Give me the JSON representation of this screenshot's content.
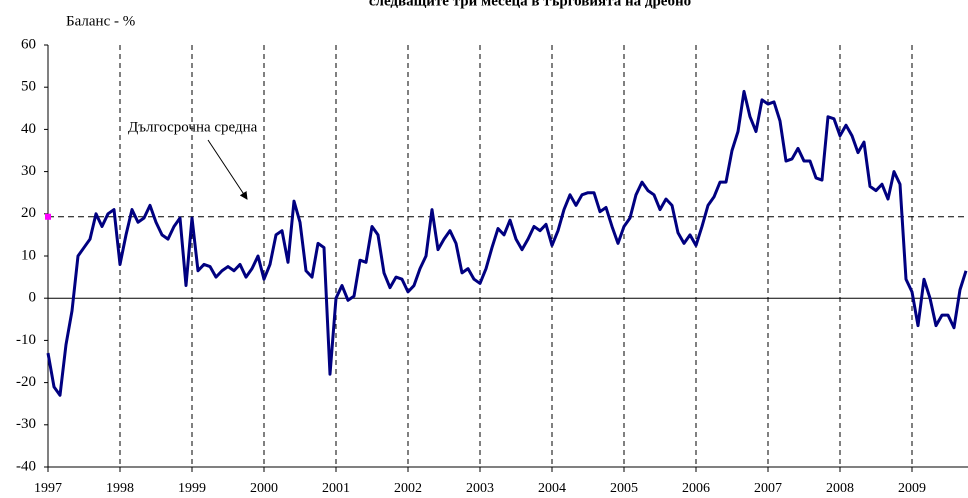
{
  "chart_data": {
    "type": "line",
    "title": "следващите три месеца в търговията на дребно",
    "y_label": "Баланс - %",
    "categories": [
      "1997",
      null,
      null,
      null,
      null,
      null,
      null,
      null,
      null,
      null,
      null,
      null,
      "1998",
      null,
      null,
      null,
      null,
      null,
      null,
      null,
      null,
      null,
      null,
      null,
      "1999",
      null,
      null,
      null,
      null,
      null,
      null,
      null,
      null,
      null,
      null,
      null,
      "2000",
      null,
      null,
      null,
      null,
      null,
      null,
      null,
      null,
      null,
      null,
      null,
      "2001",
      null,
      null,
      null,
      null,
      null,
      null,
      null,
      null,
      null,
      null,
      null,
      "2002",
      null,
      null,
      null,
      null,
      null,
      null,
      null,
      null,
      null,
      null,
      null,
      "2003",
      null,
      null,
      null,
      null,
      null,
      null,
      null,
      null,
      null,
      null,
      null,
      "2004",
      null,
      null,
      null,
      null,
      null,
      null,
      null,
      null,
      null,
      null,
      null,
      "2005",
      null,
      null,
      null,
      null,
      null,
      null,
      null,
      null,
      null,
      null,
      null,
      "2006",
      null,
      null,
      null,
      null,
      null,
      null,
      null,
      null,
      null,
      null,
      null,
      "2007",
      null,
      null,
      null,
      null,
      null,
      null,
      null,
      null,
      null,
      null,
      null,
      "2008",
      null,
      null,
      null,
      null,
      null,
      null,
      null,
      null,
      null,
      null,
      null,
      "2009",
      null,
      null,
      null,
      null,
      null,
      null,
      null,
      null,
      null
    ],
    "series": [
      {
        "color": "#000080",
        "values": [
          -13,
          -21,
          -23,
          -11,
          -3,
          10,
          12,
          14,
          20,
          17,
          20,
          21,
          8,
          15,
          21,
          18,
          19,
          22,
          18,
          15,
          14,
          17,
          19,
          3,
          19,
          6.5,
          8,
          7.5,
          5,
          6.5,
          7.5,
          6.5,
          8,
          5,
          7,
          10,
          4.5,
          8,
          15,
          16,
          8.5,
          23,
          18,
          6.5,
          5,
          13,
          12,
          -18,
          0,
          3,
          -0.5,
          0.5,
          9,
          8.5,
          17,
          15,
          6,
          2.5,
          5,
          4.5,
          1.5,
          3,
          7,
          10,
          21,
          11.5,
          14,
          16,
          13,
          6,
          7,
          4.5,
          3.5,
          7,
          12,
          16.5,
          15,
          18.5,
          14,
          11.5,
          14,
          17,
          16,
          17.5,
          12.5,
          16,
          21,
          24.5,
          22,
          24.5,
          25,
          25,
          20.5,
          21.5,
          17,
          13,
          17,
          19,
          24.5,
          27.5,
          25.5,
          24.5,
          21,
          23.5,
          22,
          15.5,
          13,
          15,
          12.5,
          17,
          22,
          24,
          27.5,
          27.5,
          35,
          39.5,
          49,
          43,
          39.5,
          47,
          46,
          46.5,
          42,
          32.5,
          33,
          35.5,
          32.5,
          32.5,
          28.5,
          28,
          43,
          42.5,
          38.5,
          41,
          38.5,
          34.5,
          37,
          26.5,
          25.5,
          27,
          23.5,
          30,
          27,
          4.5,
          1.5,
          -6.5,
          4.5,
          0,
          -6.5,
          -4,
          -4,
          -7,
          2,
          6.5
        ]
      }
    ],
    "reference": {
      "label": "Дългосрочна средна",
      "value": 19.3,
      "color": "#ff00ff"
    },
    "ylim": [
      -40,
      60
    ],
    "yticks": [
      -40,
      -30,
      -20,
      -10,
      0,
      10,
      20,
      30,
      40,
      50,
      60
    ],
    "grid": "x"
  }
}
